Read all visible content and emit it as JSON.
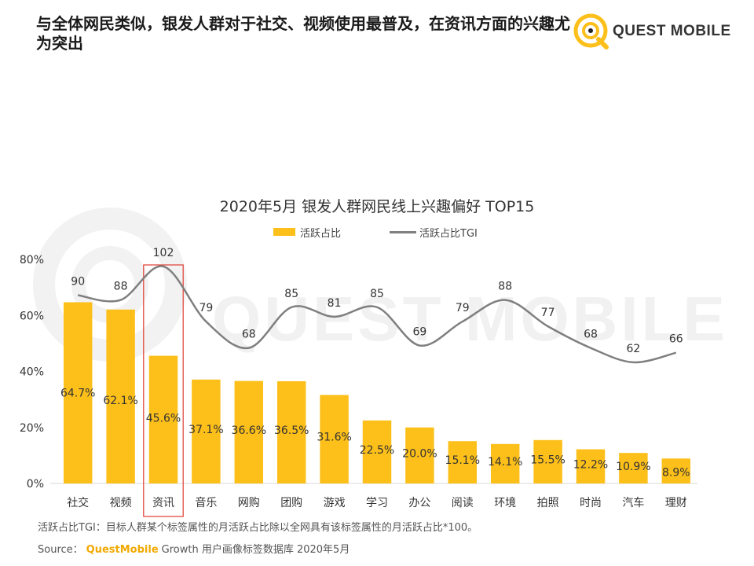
{
  "headline": "与全体网民类似，银发人群对于社交、视频使用最普及，在资讯方面的兴趣尤为突出",
  "logo": {
    "text": "QUEST MOBILE",
    "icon": "questmobile-logo-icon"
  },
  "watermark": "QUEST MOBILE",
  "chart_data": {
    "type": "bar",
    "title": "2020年5月 银发人群网民线上兴趣偏好 TOP15",
    "categories": [
      "社交",
      "视频",
      "资讯",
      "音乐",
      "网购",
      "团购",
      "游戏",
      "学习",
      "办公",
      "阅读",
      "环境",
      "拍照",
      "时尚",
      "汽车",
      "理财"
    ],
    "series": [
      {
        "name": "活跃占比",
        "kind": "bar",
        "color": "#FDBF19",
        "values": [
          64.7,
          62.1,
          45.6,
          37.1,
          36.6,
          36.5,
          31.6,
          22.5,
          20.0,
          15.1,
          14.1,
          15.5,
          12.2,
          10.9,
          8.9
        ],
        "labels": [
          "64.7%",
          "62.1%",
          "45.6%",
          "37.1%",
          "36.6%",
          "36.5%",
          "31.6%",
          "22.5%",
          "20.0%",
          "15.1%",
          "14.1%",
          "15.5%",
          "12.2%",
          "10.9%",
          "8.9%"
        ]
      },
      {
        "name": "活跃占比TGI",
        "kind": "line",
        "color": "#7f7f7f",
        "values": [
          90,
          88,
          102,
          79,
          68,
          85,
          81,
          85,
          69,
          79,
          88,
          77,
          68,
          62,
          66
        ]
      }
    ],
    "y_axis": {
      "ylim": [
        0,
        80
      ],
      "ticks": [
        "0%",
        "20%",
        "40%",
        "60%",
        "80%"
      ]
    },
    "highlight_category": "资讯",
    "highlight_color": "#E03C31",
    "legend": "top-center",
    "grid": false
  },
  "footnote": "活跃占比TGI：目标人群某个标签属性的月活跃占比除以全网具有该标签属性的月活跃占比*100。",
  "source": {
    "prefix": "Source：",
    "brand": "QuestMobile",
    "text": "Growth 用户画像标签数据库 2020年5月"
  }
}
